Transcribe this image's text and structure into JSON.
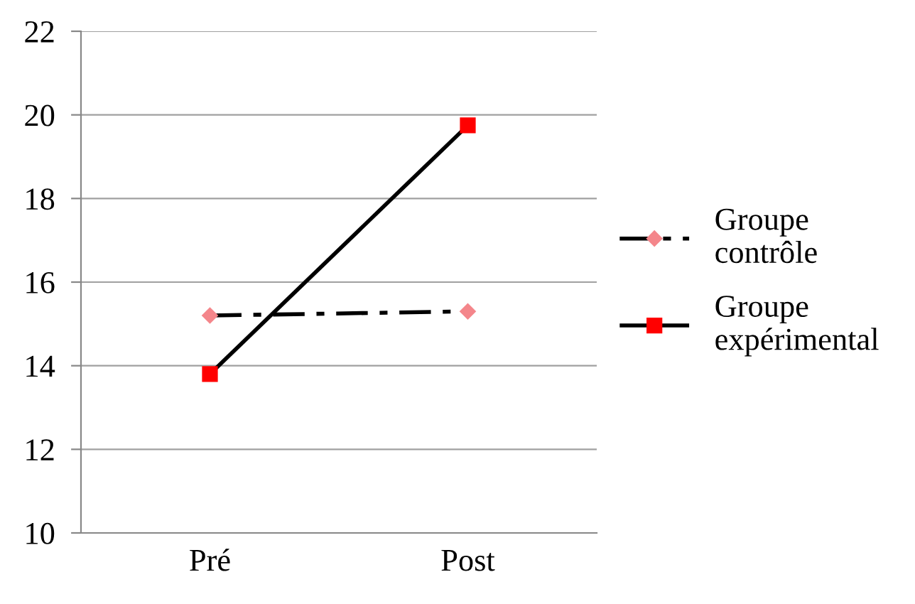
{
  "chart_data": {
    "type": "line",
    "categories": [
      "Pré",
      "Post"
    ],
    "series": [
      {
        "name": "Groupe contrôle",
        "color": "#f4868b",
        "values": [
          15.2,
          15.3
        ],
        "line_style": "dashed",
        "marker": "diamond"
      },
      {
        "name": "Groupe expérimental",
        "color": "#ff0000",
        "values": [
          13.8,
          19.75
        ],
        "line_style": "solid",
        "marker": "square"
      }
    ],
    "ylim": [
      10,
      22
    ],
    "yticks": [
      10,
      12,
      14,
      16,
      18,
      20,
      22
    ],
    "grid": "y",
    "legend": "right"
  }
}
